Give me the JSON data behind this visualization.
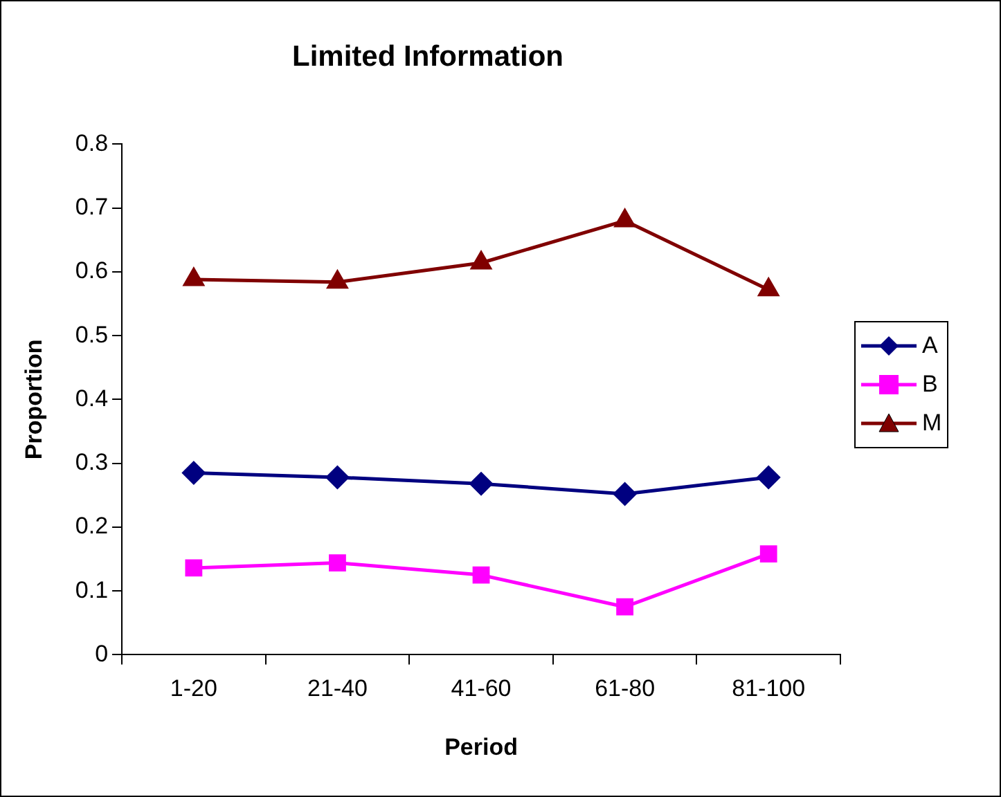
{
  "chart_data": {
    "type": "line",
    "title": "Limited Information",
    "xlabel": "Period",
    "ylabel": "Proportion",
    "categories": [
      "1-20",
      "21-40",
      "41-60",
      "61-80",
      "81-100"
    ],
    "series": [
      {
        "name": "A",
        "color": "#000080",
        "marker": "diamond",
        "values": [
          0.285,
          0.278,
          0.268,
          0.252,
          0.278
        ]
      },
      {
        "name": "B",
        "color": "#ff00ff",
        "marker": "square",
        "values": [
          0.136,
          0.144,
          0.125,
          0.075,
          0.158
        ]
      },
      {
        "name": "M",
        "color": "#800000",
        "marker": "triangle",
        "values": [
          0.588,
          0.584,
          0.614,
          0.68,
          0.572
        ]
      }
    ],
    "ylim": [
      0,
      0.8
    ],
    "yticks": [
      0,
      0.1,
      0.2,
      0.3,
      0.4,
      0.5,
      0.6,
      0.7,
      0.8
    ],
    "grid": false,
    "legend": "right"
  }
}
